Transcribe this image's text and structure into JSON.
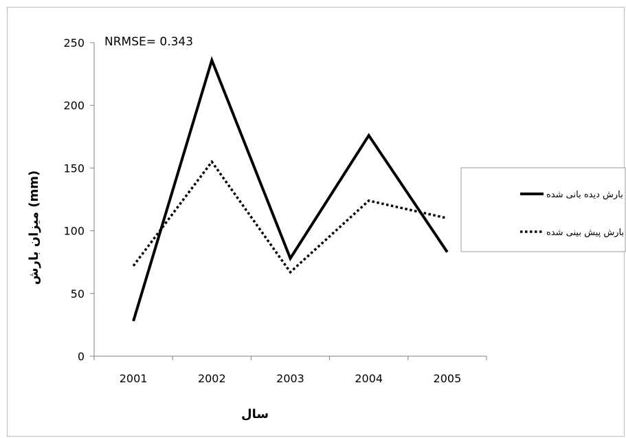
{
  "chart_data": {
    "type": "line",
    "categories": [
      "2001",
      "2002",
      "2003",
      "2004",
      "2005"
    ],
    "series": [
      {
        "name": "بارش دیده بانی شده",
        "values": [
          28,
          236,
          78,
          176,
          83
        ],
        "style": "solid",
        "color": "#000000"
      },
      {
        "name": "بارش پیش بینی شده",
        "values": [
          72,
          155,
          67,
          124,
          110
        ],
        "style": "dotted",
        "color": "#000000"
      }
    ],
    "title": "",
    "annotation": "NRMSE= 0.343",
    "xlabel": "سال",
    "ylabel": "میزان بارش (mm)",
    "ylim": [
      0,
      250
    ],
    "yticks": [
      0,
      50,
      100,
      150,
      200,
      250
    ],
    "grid": false,
    "legend_position": "right"
  }
}
